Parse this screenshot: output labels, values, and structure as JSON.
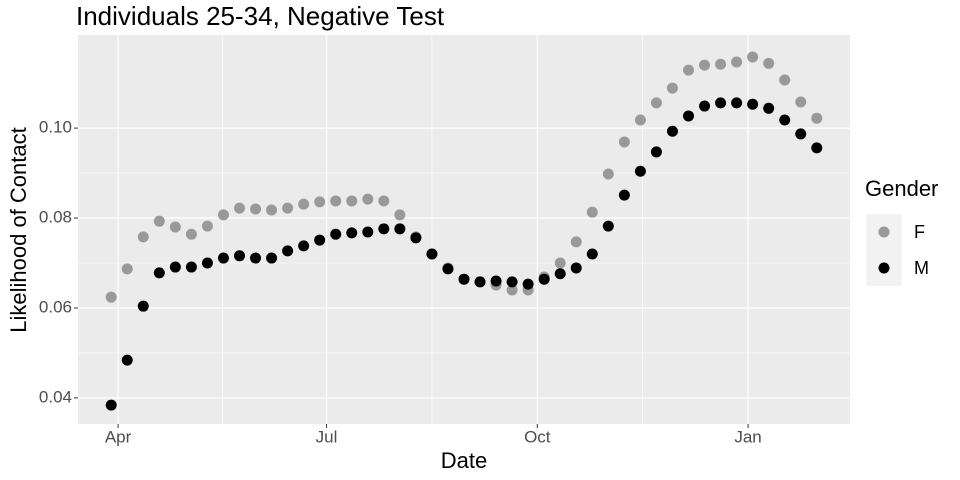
{
  "chart_data": {
    "type": "scatter",
    "title": "Individuals 25-34, Negative Test",
    "x_label": "Date",
    "y_label": "Likelihood of Contact",
    "legend_title": "Gender",
    "legend_position": "right",
    "grid": true,
    "x": [
      -3,
      4,
      11,
      18,
      25,
      32,
      39,
      46,
      53,
      60,
      67,
      74,
      81,
      88,
      95,
      102,
      109,
      116,
      123,
      130,
      137,
      144,
      151,
      158,
      165,
      172,
      179,
      186,
      193,
      200,
      207,
      214,
      221,
      228,
      235,
      242,
      249,
      256,
      263,
      270,
      277,
      284,
      291,
      298,
      305
    ],
    "xlim": [
      -17.5,
      319.5
    ],
    "xticks": [
      {
        "value": 0,
        "label": "Apr"
      },
      {
        "value": 91,
        "label": "Jul"
      },
      {
        "value": 183,
        "label": "Oct"
      },
      {
        "value": 275,
        "label": "Jan"
      }
    ],
    "ylim": [
      0.0342,
      0.1207
    ],
    "yticks": [
      0.04,
      0.06,
      0.08,
      {
        "value": 0.1,
        "label": "0.10"
      }
    ],
    "series": [
      {
        "name": "F",
        "color": "#999999",
        "values": [
          0.0624,
          0.0687,
          0.0758,
          0.0793,
          0.078,
          0.0764,
          0.0782,
          0.0807,
          0.0822,
          0.082,
          0.0818,
          0.0822,
          0.0831,
          0.0836,
          0.0838,
          0.0838,
          0.0842,
          0.0838,
          0.0807,
          0.0758,
          0.072,
          0.0689,
          0.0664,
          0.0658,
          0.0651,
          0.064,
          0.064,
          0.0669,
          0.07,
          0.0747,
          0.0813,
          0.0898,
          0.0969,
          0.1018,
          0.1056,
          0.1089,
          0.1129,
          0.114,
          0.1142,
          0.1147,
          0.1158,
          0.1144,
          0.1107,
          0.1058,
          0.1022
        ]
      },
      {
        "name": "M",
        "color": "#000000",
        "values": [
          0.0384,
          0.0484,
          0.0604,
          0.0678,
          0.0691,
          0.0691,
          0.07,
          0.0711,
          0.0716,
          0.0711,
          0.0711,
          0.0727,
          0.0738,
          0.0751,
          0.0764,
          0.0767,
          0.0769,
          0.0776,
          0.0776,
          0.0756,
          0.072,
          0.0687,
          0.0664,
          0.0658,
          0.066,
          0.0658,
          0.0653,
          0.0664,
          0.0676,
          0.0689,
          0.072,
          0.0782,
          0.0851,
          0.0904,
          0.0947,
          0.0993,
          0.1027,
          0.1049,
          0.1056,
          0.1056,
          0.1053,
          0.1044,
          0.1018,
          0.0987,
          0.0956
        ]
      }
    ]
  }
}
